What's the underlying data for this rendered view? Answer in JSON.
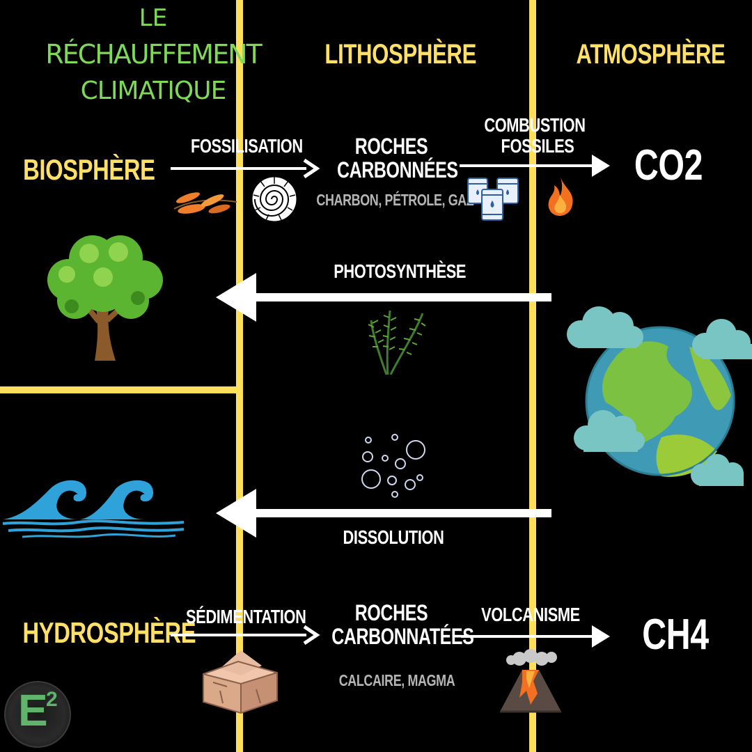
{
  "title": {
    "line1": "LE",
    "line2": "RÉCHAUFFEMENT",
    "line3": "CLIMATIQUE"
  },
  "columns": {
    "lithosphere": "LITHOSPHÈRE",
    "atmosphere": "ATMOSPHÈRE"
  },
  "spheres": {
    "biosphere": "BIOSPHÈRE",
    "hydrosphere": "HYDROSPHÈRE"
  },
  "top_flow": {
    "fossilisation": "FOSSILISATION",
    "roches1": "ROCHES",
    "carbonnees": "CARBONNÉES",
    "sub1": "CHARBON, PÉTROLE, GAZ",
    "combustion": "COMBUSTION",
    "fossiles": "FOSSILES",
    "gas": "CO2"
  },
  "middle": {
    "photosynthese": "PHOTOSYNTHÈSE",
    "dissolution": "DISSOLUTION"
  },
  "bottom_flow": {
    "sedimentation": "SÉDIMENTATION",
    "roches2": "ROCHES",
    "carbonnatees": "CARBONNATÉES",
    "sub2": "CALCAIRE, MAGMA",
    "volcanisme": "VOLCANISME",
    "gas": "CH4"
  },
  "logo": {
    "text": "E",
    "sup": "2"
  },
  "colors": {
    "line": "#ffde59",
    "label": "#ffe066",
    "title": "#7ed957",
    "arrow": "#ffffff"
  },
  "icons": [
    "leaves-icon",
    "ammonite-icon",
    "barrels-icon",
    "flame-icon",
    "tree-icon",
    "algae-icon",
    "earth-icon",
    "cloud-icon",
    "bubbles-icon",
    "wave-icon",
    "rock-icon",
    "volcano-icon",
    "logo-icon"
  ]
}
